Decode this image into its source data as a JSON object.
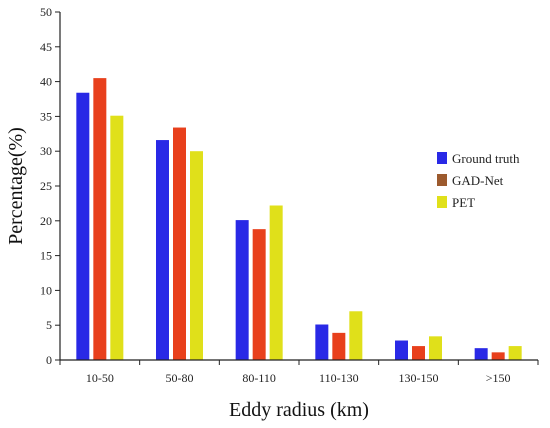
{
  "chart_data": {
    "type": "bar",
    "title": "",
    "xlabel": "Eddy radius (km)",
    "ylabel": "Percentage(%)",
    "categories": [
      "10-50",
      "50-80",
      "80-110",
      "110-130",
      "130-150",
      ">150"
    ],
    "ylim": [
      0,
      50
    ],
    "yticks": [
      0,
      5,
      10,
      15,
      20,
      25,
      30,
      35,
      40,
      45,
      50
    ],
    "grid": false,
    "legend_position": "right",
    "series": [
      {
        "name": "Ground truth",
        "color": "#2929e6",
        "values": [
          38.4,
          31.6,
          20.1,
          5.1,
          2.8,
          1.7
        ]
      },
      {
        "name": "GAD-Net",
        "color": "#e8401c",
        "legend_color": "#9c5a2e",
        "values": [
          40.5,
          33.4,
          18.8,
          3.9,
          2.0,
          1.1
        ]
      },
      {
        "name": "PET",
        "color": "#e0e01a",
        "values": [
          35.1,
          30.0,
          22.2,
          7.0,
          3.4,
          2.0
        ]
      }
    ]
  }
}
